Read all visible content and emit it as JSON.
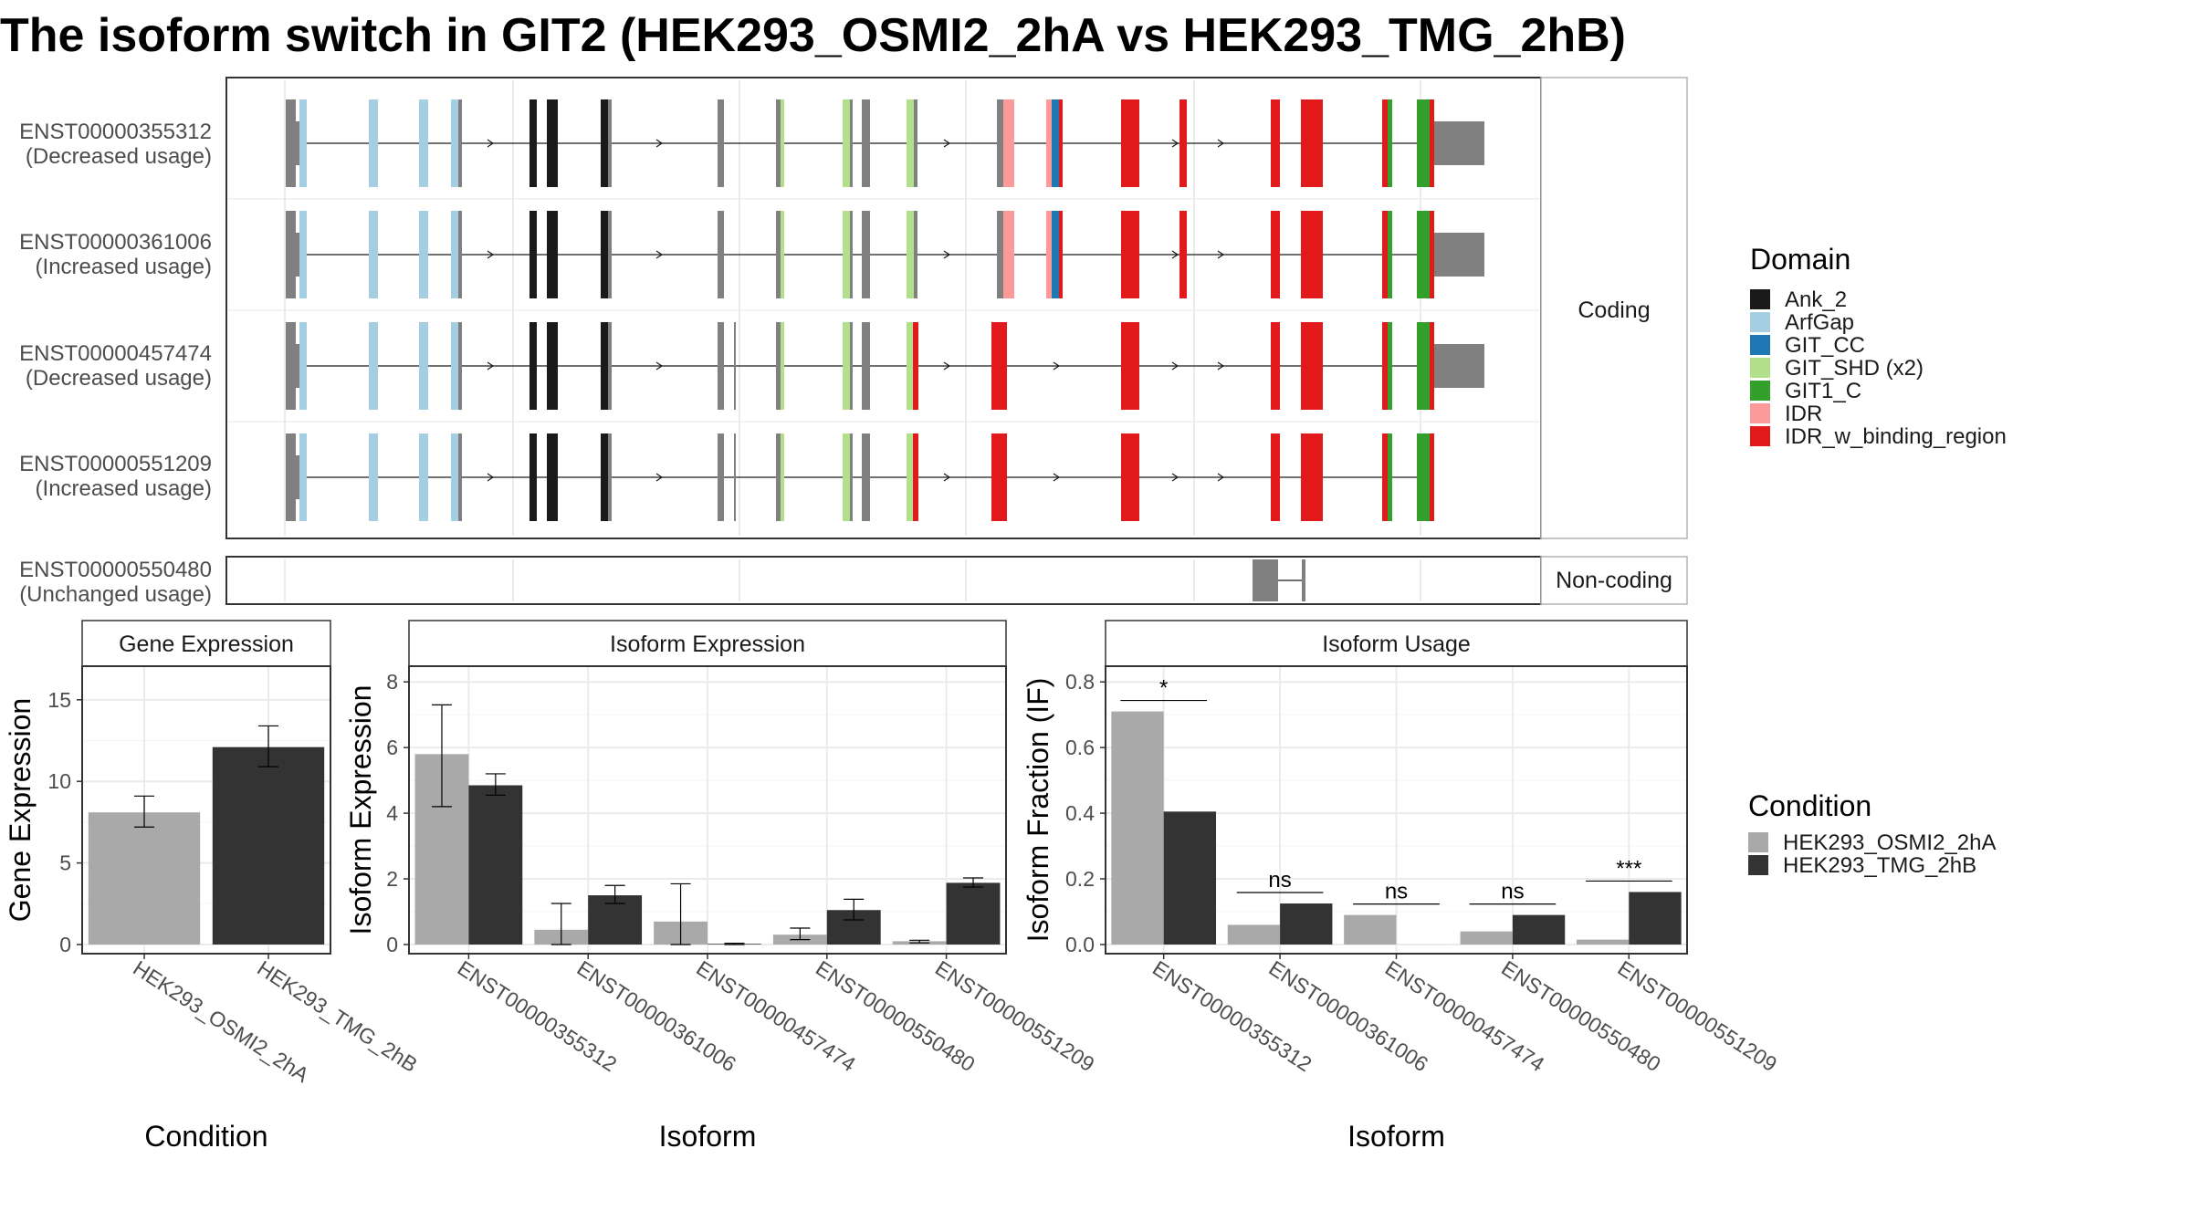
{
  "title": "The isoform switch in GIT2 (HEK293_OSMI2_2hA vs HEK293_TMG_2hB)",
  "colors": {
    "Ank_2": "#1a1a1a",
    "ArfGap": "#a6cee3",
    "GIT_CC": "#1f78b4",
    "GIT_SHD (x2)": "#b2df8a",
    "GIT1_C": "#33a02c",
    "IDR": "#fb9a99",
    "IDR_w_binding_region": "#e31a1c",
    "exon": "#808080",
    "cond_a": "#a9a9a9",
    "cond_b": "#333333"
  },
  "transcripts": {
    "panel_coding": "Coding",
    "panel_noncoding": "Non-coding",
    "coding": [
      {
        "id": "ENST00000355312",
        "usage": "(Decreased usage)"
      },
      {
        "id": "ENST00000361006",
        "usage": "(Increased usage)"
      },
      {
        "id": "ENST00000457474",
        "usage": "(Decreased usage)"
      },
      {
        "id": "ENST00000551209",
        "usage": "(Increased usage)"
      }
    ],
    "noncoding": [
      {
        "id": "ENST00000550480",
        "usage": "(Unchanged usage)"
      }
    ]
  },
  "domain_legend": {
    "title": "Domain",
    "items": [
      "Ank_2",
      "ArfGap",
      "GIT_CC",
      "GIT_SHD (x2)",
      "GIT1_C",
      "IDR",
      "IDR_w_binding_region"
    ]
  },
  "condition_legend": {
    "title": "Condition",
    "items": [
      "HEK293_OSMI2_2hA",
      "HEK293_TMG_2hB"
    ]
  },
  "chart_data": [
    {
      "type": "bar",
      "title": "Gene Expression",
      "xlabel": "Condition",
      "ylabel": "Gene Expression",
      "ylim": [
        0,
        16.5
      ],
      "yticks": [
        0,
        5,
        10,
        15
      ],
      "categories": [
        "HEK293_OSMI2_2hA",
        "HEK293_TMG_2hB"
      ],
      "values": [
        8.1,
        12.1
      ],
      "errors": [
        [
          7.2,
          9.1
        ],
        [
          10.9,
          13.4
        ]
      ]
    },
    {
      "type": "bar",
      "title": "Isoform Expression",
      "xlabel": "Isoform",
      "ylabel": "Isoform Expression",
      "ylim": [
        0,
        8.2
      ],
      "yticks": [
        0,
        2,
        4,
        6,
        8
      ],
      "categories": [
        "ENST00000355312",
        "ENST00000361006",
        "ENST00000457474",
        "ENST00000550480",
        "ENST00000551209"
      ],
      "series": [
        {
          "name": "HEK293_OSMI2_2hA",
          "values": [
            5.8,
            0.45,
            0.7,
            0.3,
            0.1
          ],
          "errors": [
            [
              4.2,
              7.3
            ],
            [
              0,
              1.25
            ],
            [
              0,
              1.85
            ],
            [
              0.15,
              0.5
            ],
            [
              0.05,
              0.13
            ]
          ]
        },
        {
          "name": "HEK293_TMG_2hB",
          "values": [
            4.85,
            1.5,
            0.02,
            1.05,
            1.88
          ],
          "errors": [
            [
              4.55,
              5.2
            ],
            [
              1.25,
              1.8
            ],
            [
              0,
              0.04
            ],
            [
              0.75,
              1.38
            ],
            [
              1.75,
              2.03
            ]
          ]
        }
      ]
    },
    {
      "type": "bar",
      "title": "Isoform Usage",
      "xlabel": "Isoform",
      "ylabel": "Isoform Fraction (IF)",
      "ylim": [
        0,
        0.82
      ],
      "yticks": [
        "0.0",
        "0.2",
        "0.4",
        "0.6",
        "0.8"
      ],
      "categories": [
        "ENST00000355312",
        "ENST00000361006",
        "ENST00000457474",
        "ENST00000550480",
        "ENST00000551209"
      ],
      "series": [
        {
          "name": "HEK293_OSMI2_2hA",
          "values": [
            0.71,
            0.06,
            0.09,
            0.04,
            0.015
          ]
        },
        {
          "name": "HEK293_TMG_2hB",
          "values": [
            0.405,
            0.125,
            0.0,
            0.09,
            0.16
          ]
        }
      ],
      "significance": [
        "*",
        "ns",
        "ns",
        "ns",
        "***"
      ]
    }
  ]
}
